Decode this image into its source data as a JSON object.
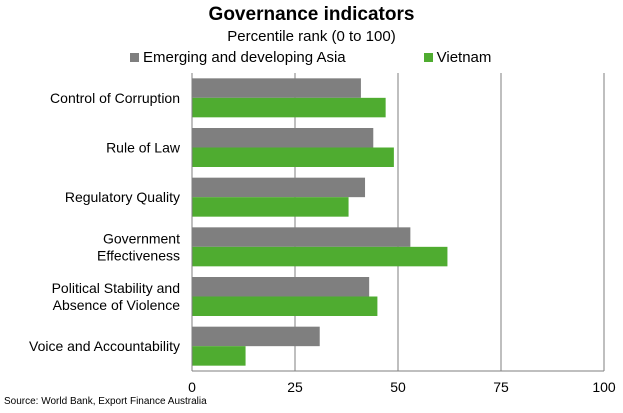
{
  "chart_data": {
    "type": "bar",
    "orientation": "horizontal",
    "title": "Governance indicators",
    "subtitle": "Percentile rank (0 to 100)",
    "categories": [
      "Control of Corruption",
      "Rule of Law",
      "Regulatory Quality",
      "Government Effectiveness",
      "Political Stability and Absence of Violence",
      "Voice and Accountability"
    ],
    "category_lines": [
      [
        "Control of Corruption"
      ],
      [
        "Rule of Law"
      ],
      [
        "Regulatory Quality"
      ],
      [
        "Government",
        "Effectiveness"
      ],
      [
        "Political Stability and",
        "Absence of Violence"
      ],
      [
        "Voice and Accountability"
      ]
    ],
    "series": [
      {
        "name": "Emerging and developing Asia",
        "color": "#7f7f7f",
        "values": [
          41,
          44,
          42,
          53,
          43,
          31
        ]
      },
      {
        "name": "Vietnam",
        "color": "#4fac30",
        "values": [
          47,
          49,
          38,
          62,
          45,
          13
        ]
      }
    ],
    "xlim": [
      0,
      100
    ],
    "xticks": [
      0,
      25,
      50,
      75,
      100
    ],
    "grid": "vertical",
    "legend_position": "top"
  },
  "source": "Source: World Bank, Export Finance Australia"
}
